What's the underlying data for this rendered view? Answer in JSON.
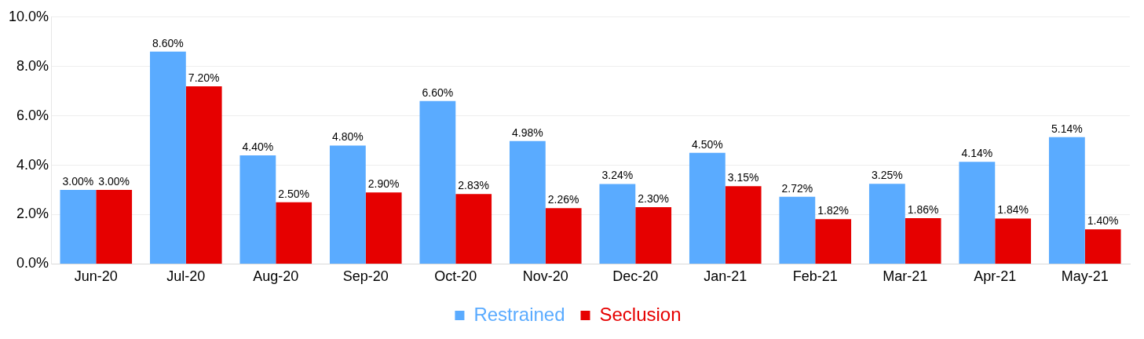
{
  "chart_data": {
    "type": "bar",
    "categories": [
      "Jun-20",
      "Jul-20",
      "Aug-20",
      "Sep-20",
      "Oct-20",
      "Nov-20",
      "Dec-20",
      "Jan-21",
      "Feb-21",
      "Mar-21",
      "Apr-21",
      "May-21"
    ],
    "series": [
      {
        "name": "Restrained",
        "color": "#5aabff",
        "values": [
          3.0,
          8.6,
          4.4,
          4.8,
          6.6,
          4.98,
          3.24,
          4.5,
          2.72,
          3.25,
          4.14,
          5.14
        ],
        "value_labels": [
          "3.00%",
          "8.60%",
          "4.40%",
          "4.80%",
          "6.60%",
          "4.98%",
          "3.24%",
          "4.50%",
          "2.72%",
          "3.25%",
          "4.14%",
          "5.14%"
        ]
      },
      {
        "name": "Seclusion",
        "color": "#e60000",
        "values": [
          3.0,
          7.2,
          2.5,
          2.9,
          2.83,
          2.26,
          2.3,
          3.15,
          1.82,
          1.86,
          1.84,
          1.4
        ],
        "value_labels": [
          "3.00%",
          "7.20%",
          "2.50%",
          "2.90%",
          "2.83%",
          "2.26%",
          "2.30%",
          "3.15%",
          "1.82%",
          "1.86%",
          "1.84%",
          "1.40%"
        ]
      }
    ],
    "ylim": [
      0,
      10
    ],
    "yticks": [
      {
        "value": 0,
        "label": "0.0%"
      },
      {
        "value": 2,
        "label": "2.0%"
      },
      {
        "value": 4,
        "label": "4.0%"
      },
      {
        "value": 6,
        "label": "6.0%"
      },
      {
        "value": 8,
        "label": "8.0%"
      },
      {
        "value": 10,
        "label": "10.0%"
      }
    ],
    "grid": "y",
    "legend": "bottom"
  }
}
